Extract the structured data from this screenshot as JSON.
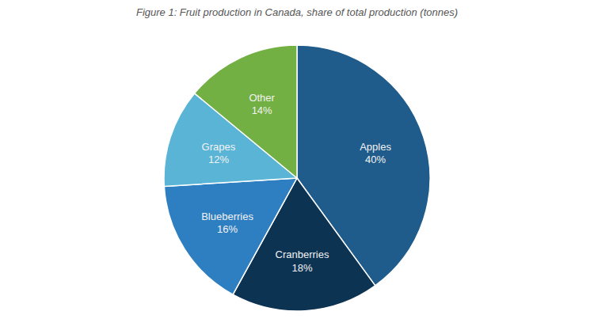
{
  "chart_data": {
    "type": "pie",
    "title": "Figure 1: Fruit production in Canada, share of total production (tonnes)",
    "categories": [
      "Apples",
      "Cranberries",
      "Blueberries",
      "Grapes",
      "Other"
    ],
    "values": [
      40,
      18,
      16,
      12,
      14
    ],
    "value_labels": [
      "40%",
      "18%",
      "16%",
      "12%",
      "14%"
    ],
    "colors": [
      "#1f5c8b",
      "#0d3352",
      "#2e7fc1",
      "#5ab4d6",
      "#72b043"
    ],
    "data_labels": true
  }
}
